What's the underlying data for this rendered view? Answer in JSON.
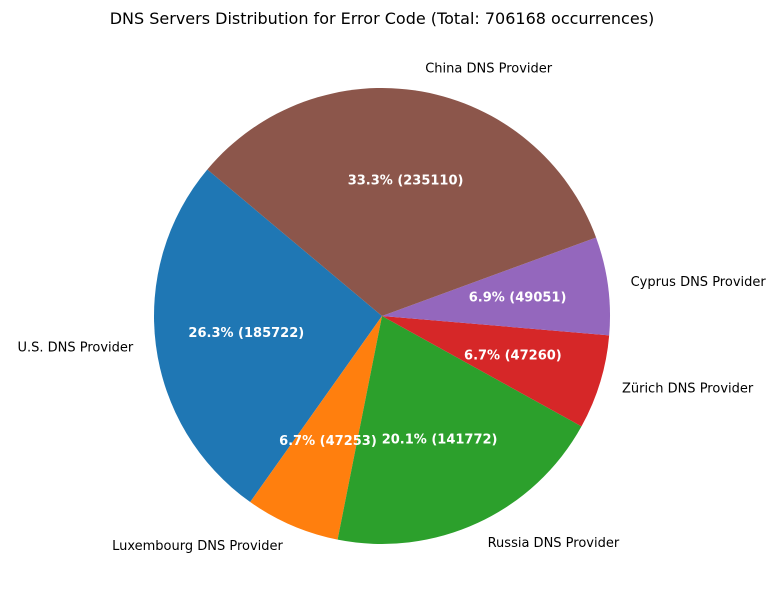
{
  "chart_data": {
    "type": "pie",
    "title": "DNS Servers Distribution for Error Code  (Total: 706168 occurrences)",
    "start_angle_deg": 140,
    "direction": "counterclockwise",
    "slices": [
      {
        "label": "U.S. DNS Provider",
        "value": 185722,
        "percent_label": "26.3% (185722)",
        "color": "#1f77b4"
      },
      {
        "label": "Luxembourg DNS Provider",
        "value": 47253,
        "percent_label": "6.7% (47253)",
        "color": "#ff7f0e"
      },
      {
        "label": "Russia DNS Provider",
        "value": 141772,
        "percent_label": "20.1% (141772)",
        "color": "#2ca02c"
      },
      {
        "label": "Zürich DNS Provider",
        "value": 47260,
        "percent_label": "6.7% (47260)",
        "color": "#d62728"
      },
      {
        "label": "Cyprus DNS Provider",
        "value": 49051,
        "percent_label": "6.9% (49051)",
        "color": "#9467bd"
      },
      {
        "label": "China DNS Provider",
        "value": 235110,
        "percent_label": "33.3% (235110)",
        "color": "#8c564b"
      }
    ]
  }
}
